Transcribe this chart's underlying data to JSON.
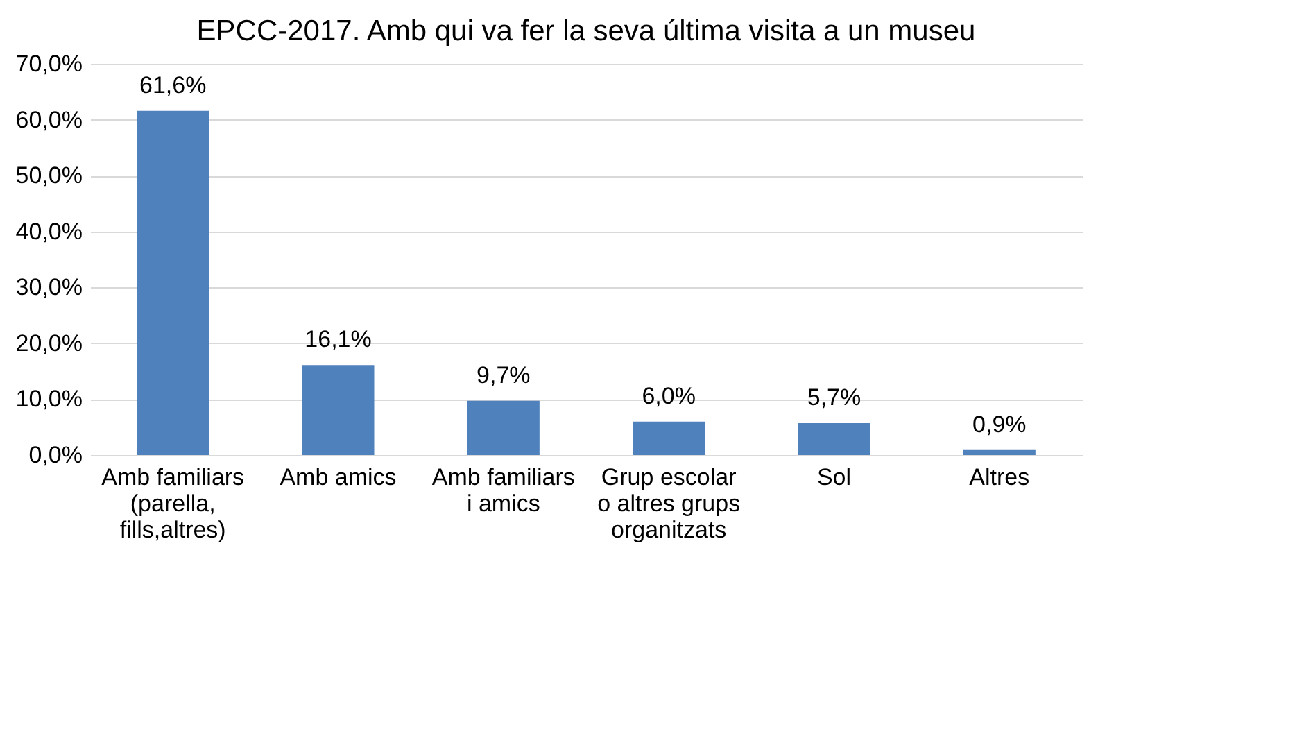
{
  "chart_data": {
    "type": "bar",
    "title": "EPCC-2017. Amb qui va fer la seva última visita a un museu",
    "categories": [
      "Amb familiars\n(parella,\nfills,altres)",
      "Amb amics",
      "Amb familiars\ni amics",
      "Grup escolar\no altres grups\norganitzats",
      "Sol",
      "Altres"
    ],
    "values": [
      61.6,
      16.1,
      9.7,
      6.0,
      5.7,
      0.9
    ],
    "value_labels": [
      "61,6%",
      "16,1%",
      "9,7%",
      "6,0%",
      "5,7%",
      "0,9%"
    ],
    "color": "#4f81bd",
    "ylim": [
      0,
      70
    ],
    "yticks": [
      {
        "value": 0,
        "label": "0,0%"
      },
      {
        "value": 10,
        "label": "10,0%"
      },
      {
        "value": 20,
        "label": "20,0%"
      },
      {
        "value": 30,
        "label": "30,0%"
      },
      {
        "value": 40,
        "label": "40,0%"
      },
      {
        "value": 50,
        "label": "50,0%"
      },
      {
        "value": 60,
        "label": "60,0%"
      },
      {
        "value": 70,
        "label": "70,0%"
      }
    ],
    "grid": "y"
  }
}
